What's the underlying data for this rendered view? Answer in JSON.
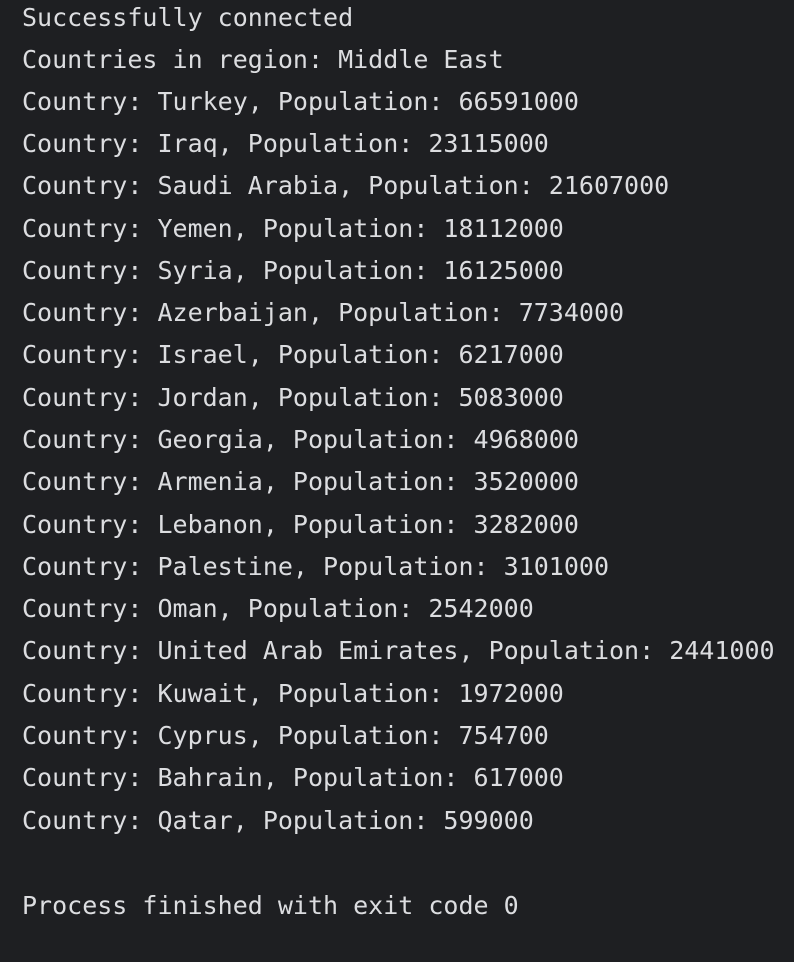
{
  "console": {
    "status": "Successfully connected",
    "region_line": "Countries in region: Middle East",
    "rows": [
      "Country: Turkey, Population: 66591000",
      "Country: Iraq, Population: 23115000",
      "Country: Saudi Arabia, Population: 21607000",
      "Country: Yemen, Population: 18112000",
      "Country: Syria, Population: 16125000",
      "Country: Azerbaijan, Population: 7734000",
      "Country: Israel, Population: 6217000",
      "Country: Jordan, Population: 5083000",
      "Country: Georgia, Population: 4968000",
      "Country: Armenia, Population: 3520000",
      "Country: Lebanon, Population: 3282000",
      "Country: Palestine, Population: 3101000",
      "Country: Oman, Population: 2542000",
      "Country: United Arab Emirates, Population: 2441000",
      "Country: Kuwait, Population: 1972000",
      "Country: Cyprus, Population: 754700",
      "Country: Bahrain, Population: 617000",
      "Country: Qatar, Population: 599000"
    ],
    "exit_message": "Process finished with exit code 0"
  }
}
